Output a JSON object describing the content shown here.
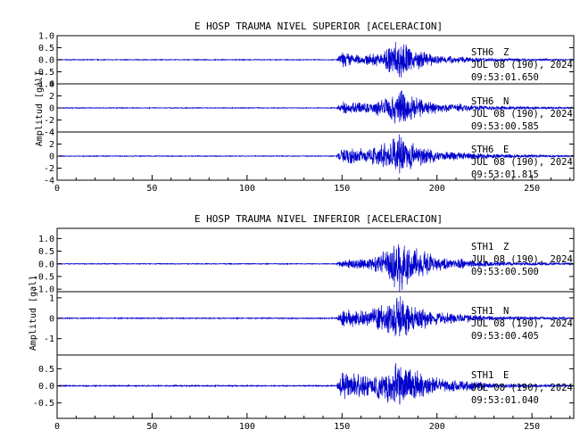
{
  "colors": {
    "trace": "#0000cc",
    "axes": "#000000",
    "background": "#ffffff"
  },
  "chart_data": [
    {
      "type": "line",
      "title": "E HOSP TRAUMA NIVEL SUPERIOR [ACELERACION]",
      "ylabel": "Amplitud [gal]",
      "xlim": [
        0,
        272
      ],
      "xticks": [
        0,
        50,
        100,
        150,
        200,
        250
      ],
      "panels": [
        {
          "station": "STH6",
          "component": "Z",
          "date": "JUL 08 (190), 2024",
          "time": "09:53:01.650",
          "ylim": [
            -1.0,
            1.0
          ],
          "yticks": [
            -1.0,
            -0.5,
            0.0,
            0.5,
            1.0
          ],
          "ytick_labels": [
            "-1.0",
            "-0.5",
            "0.0",
            "0.5",
            "1.0"
          ],
          "envelope": [
            [
              0,
              0.02
            ],
            [
              147,
              0.02
            ],
            [
              150,
              0.35
            ],
            [
              160,
              0.2
            ],
            [
              170,
              0.35
            ],
            [
              176,
              0.7
            ],
            [
              180,
              0.95
            ],
            [
              186,
              0.55
            ],
            [
              200,
              0.2
            ],
            [
              230,
              0.07
            ],
            [
              272,
              0.03
            ]
          ]
        },
        {
          "station": "STH6",
          "component": "N",
          "date": "JUL 08 (190), 2024",
          "time": "09:53:00.585",
          "ylim": [
            -4,
            4
          ],
          "yticks": [
            -4,
            -2,
            0,
            2,
            4
          ],
          "ytick_labels": [
            "-4",
            "-2",
            "0",
            "2",
            "4"
          ],
          "envelope": [
            [
              0,
              0.08
            ],
            [
              147,
              0.08
            ],
            [
              150,
              1.2
            ],
            [
              165,
              1.0
            ],
            [
              175,
              2.2
            ],
            [
              180,
              3.5
            ],
            [
              186,
              2.2
            ],
            [
              200,
              0.9
            ],
            [
              230,
              0.35
            ],
            [
              272,
              0.15
            ]
          ]
        },
        {
          "station": "STH6",
          "component": "E",
          "date": "JUL 08 (190), 2024",
          "time": "09:53:01.815",
          "ylim": [
            -4,
            4
          ],
          "yticks": [
            -4,
            -2,
            0,
            2,
            4
          ],
          "ytick_labels": [
            "-4",
            "-2",
            "0",
            "2",
            "4"
          ],
          "envelope": [
            [
              0,
              0.08
            ],
            [
              147,
              0.08
            ],
            [
              150,
              1.6
            ],
            [
              165,
              1.3
            ],
            [
              175,
              2.8
            ],
            [
              180,
              3.9
            ],
            [
              186,
              2.5
            ],
            [
              200,
              1.0
            ],
            [
              230,
              0.4
            ],
            [
              272,
              0.15
            ]
          ]
        }
      ]
    },
    {
      "type": "line",
      "title": "E HOSP TRAUMA NIVEL INFERIOR [ACELERACION]",
      "ylabel": "Amplitud [gal]",
      "xlim": [
        0,
        272
      ],
      "xticks": [
        0,
        50,
        100,
        150,
        200,
        250
      ],
      "panels": [
        {
          "station": "STH1",
          "component": "Z",
          "date": "JUL 08 (190), 2024",
          "time": "09:53:00.500",
          "ylim": [
            -1.1,
            1.4
          ],
          "yticks": [
            -1.0,
            -0.5,
            0.0,
            0.5,
            1.0
          ],
          "ytick_labels": [
            "-1.0",
            "-0.5",
            "0.0",
            "0.5",
            "1.0"
          ],
          "envelope": [
            [
              0,
              0.02
            ],
            [
              147,
              0.02
            ],
            [
              150,
              0.2
            ],
            [
              165,
              0.25
            ],
            [
              175,
              0.7
            ],
            [
              180,
              1.3
            ],
            [
              186,
              0.8
            ],
            [
              200,
              0.3
            ],
            [
              230,
              0.1
            ],
            [
              272,
              0.04
            ]
          ]
        },
        {
          "station": "STH1",
          "component": "N",
          "date": "JUL 08 (190), 2024",
          "time": "09:53:00.405",
          "ylim": [
            -1.8,
            1.3
          ],
          "yticks": [
            -1,
            0,
            1
          ],
          "ytick_labels": [
            "-1",
            "0",
            "1"
          ],
          "envelope": [
            [
              0,
              0.03
            ],
            [
              147,
              0.03
            ],
            [
              150,
              0.45
            ],
            [
              165,
              0.5
            ],
            [
              175,
              0.9
            ],
            [
              180,
              1.2
            ],
            [
              186,
              0.8
            ],
            [
              200,
              0.35
            ],
            [
              230,
              0.12
            ],
            [
              272,
              0.05
            ]
          ]
        },
        {
          "station": "STH1",
          "component": "E",
          "date": "JUL 08 (190), 2024",
          "time": "09:53:01.040",
          "ylim": [
            -0.95,
            0.9
          ],
          "yticks": [
            -0.5,
            0.0,
            0.5
          ],
          "ytick_labels": [
            "-0.5",
            "0.0",
            "0.5"
          ],
          "envelope": [
            [
              0,
              0.02
            ],
            [
              147,
              0.02
            ],
            [
              150,
              0.45
            ],
            [
              165,
              0.35
            ],
            [
              175,
              0.6
            ],
            [
              180,
              0.85
            ],
            [
              186,
              0.55
            ],
            [
              200,
              0.25
            ],
            [
              230,
              0.08
            ],
            [
              272,
              0.03
            ]
          ]
        }
      ]
    }
  ]
}
